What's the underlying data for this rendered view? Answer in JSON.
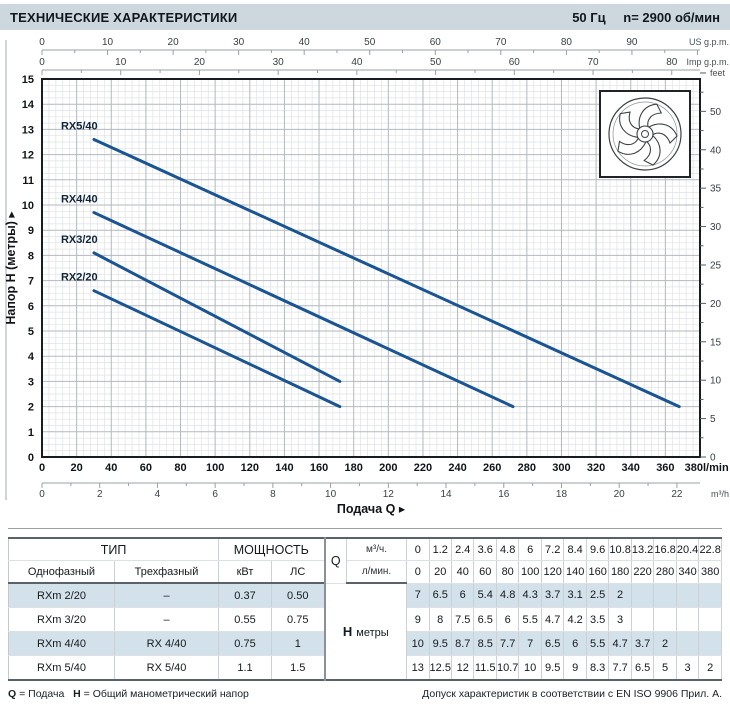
{
  "header": {
    "title": "ТЕХНИЧЕСКИЕ ХАРАКТЕРИСТИКИ",
    "frequency": "50 Гц",
    "speed": "n= 2900  об/мин"
  },
  "chart_data": {
    "type": "line",
    "xlabel": "Подача Q",
    "ylabel": "Напор H (метры)",
    "x_axis_lmin": {
      "label": "l/min",
      "ticks": [
        0,
        20,
        40,
        60,
        80,
        100,
        120,
        140,
        160,
        180,
        200,
        220,
        240,
        260,
        280,
        300,
        320,
        340,
        360,
        380
      ],
      "max": 380
    },
    "x_axis_m3h": {
      "label": "m³/h",
      "ticks": [
        0,
        2,
        4,
        6,
        8,
        10,
        12,
        14,
        16,
        18,
        20,
        22
      ],
      "lmin_per_unit": 16.6667
    },
    "x_axis_us_gpm": {
      "label": "US g.p.m.",
      "ticks": [
        0,
        10,
        20,
        30,
        40,
        50,
        60,
        70,
        80,
        90
      ],
      "lmin_per_unit": 3.78541
    },
    "x_axis_imp_gpm": {
      "label": "Imp g.p.m.",
      "ticks": [
        0,
        10,
        20,
        30,
        40,
        50,
        60,
        70,
        80
      ],
      "lmin_per_unit": 4.54609
    },
    "y_axis_m": {
      "label": "Напор H (метры)",
      "min": 0,
      "max": 15,
      "ticks": [
        0,
        1,
        2,
        3,
        4,
        5,
        6,
        7,
        8,
        9,
        10,
        11,
        12,
        13,
        14,
        15
      ]
    },
    "y_axis_feet": {
      "label": "feet",
      "tick_step": 2.5,
      "label_values": [
        0,
        5,
        10,
        15,
        20,
        25,
        30,
        35,
        40,
        50
      ],
      "m_per_foot": 0.3048
    },
    "curve_color": "#1a5492",
    "series": [
      {
        "name": "RX2/20",
        "line": [
          [
            30,
            6.6
          ],
          [
            172,
            2.0
          ]
        ],
        "data_points_q_lmin": [
          0,
          20,
          40,
          60,
          80,
          100,
          120,
          140,
          160,
          180
        ],
        "data_points_h_m": [
          7,
          6.5,
          6,
          5.4,
          4.8,
          4.3,
          3.7,
          3.1,
          2.5,
          2
        ]
      },
      {
        "name": "RX3/20",
        "line": [
          [
            30,
            8.1
          ],
          [
            172,
            3.0
          ]
        ],
        "data_points_q_lmin": [
          0,
          20,
          40,
          60,
          80,
          100,
          120,
          140,
          160,
          180
        ],
        "data_points_h_m": [
          9,
          8,
          7.5,
          6.5,
          6,
          5.5,
          4.7,
          4.2,
          3.5,
          3
        ]
      },
      {
        "name": "RX4/40",
        "line": [
          [
            30,
            9.7
          ],
          [
            272,
            2.0
          ]
        ],
        "data_points_q_lmin": [
          0,
          20,
          40,
          60,
          80,
          100,
          120,
          140,
          160,
          180,
          220,
          280
        ],
        "data_points_h_m": [
          10,
          9.5,
          8.7,
          8.5,
          7.7,
          7,
          6.5,
          6,
          5.5,
          4.7,
          3.7,
          2
        ]
      },
      {
        "name": "RX5/40",
        "line": [
          [
            30,
            12.6
          ],
          [
            368,
            2.0
          ]
        ],
        "data_points_q_lmin": [
          0,
          20,
          40,
          60,
          80,
          100,
          120,
          140,
          160,
          180,
          220,
          280,
          340,
          380
        ],
        "data_points_h_m": [
          13,
          12.5,
          12,
          11.5,
          10.7,
          10,
          9.5,
          9,
          8.3,
          7.7,
          6.5,
          5,
          3,
          2
        ]
      }
    ]
  },
  "table": {
    "header": {
      "tip": "ТИП",
      "power": "МОЩНОСТЬ",
      "single": "Однофазный",
      "three": "Трехфазный",
      "kw": "кВт",
      "hp": "ЛС",
      "q": "Q",
      "m3h": "м³/ч.",
      "lmin": "л/мин.",
      "h": "H",
      "meters": "метры"
    },
    "q_m3h": [
      "0",
      "1.2",
      "2.4",
      "3.6",
      "4.8",
      "6",
      "7.2",
      "8.4",
      "9.6",
      "10.8",
      "13.2",
      "16.8",
      "20.4",
      "22.8"
    ],
    "q_lmin": [
      "0",
      "20",
      "40",
      "60",
      "80",
      "100",
      "120",
      "140",
      "160",
      "180",
      "220",
      "280",
      "340",
      "380"
    ],
    "rows": [
      {
        "single": "RXm 2/20",
        "three": "–",
        "kw": "0.37",
        "hp": "0.50",
        "shaded": true,
        "h": [
          "7",
          "6.5",
          "6",
          "5.4",
          "4.8",
          "4.3",
          "3.7",
          "3.1",
          "2.5",
          "2",
          "",
          "",
          "",
          ""
        ]
      },
      {
        "single": "RXm 3/20",
        "three": "–",
        "kw": "0.55",
        "hp": "0.75",
        "shaded": false,
        "h": [
          "9",
          "8",
          "7.5",
          "6.5",
          "6",
          "5.5",
          "4.7",
          "4.2",
          "3.5",
          "3",
          "",
          "",
          "",
          ""
        ]
      },
      {
        "single": "RXm 4/40",
        "three": "RX 4/40",
        "kw": "0.75",
        "hp": "1",
        "shaded": true,
        "h": [
          "10",
          "9.5",
          "8.7",
          "8.5",
          "7.7",
          "7",
          "6.5",
          "6",
          "5.5",
          "4.7",
          "3.7",
          "2",
          "",
          ""
        ]
      },
      {
        "single": "RXm 5/40",
        "three": "RX 5/40",
        "kw": "1.1",
        "hp": "1.5",
        "shaded": false,
        "h": [
          "13",
          "12.5",
          "12",
          "11.5",
          "10.7",
          "10",
          "9.5",
          "9",
          "8.3",
          "7.7",
          "6.5",
          "5",
          "3",
          "2"
        ]
      }
    ]
  },
  "footer": {
    "q": "Q",
    "q_def": "= Подача",
    "h": "H",
    "h_def": "= Общий манометрический напор",
    "right": "Допуск характеристик в соответствии с EN ISO 9906 Прил. А."
  }
}
